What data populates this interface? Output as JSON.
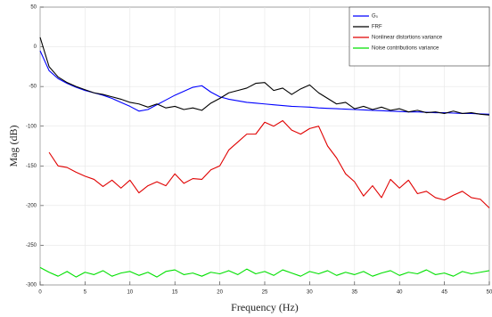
{
  "chart_data": {
    "type": "line",
    "xlabel": "Frequency (Hz)",
    "ylabel": "Mag (dB)",
    "x": [
      0,
      1,
      2,
      3,
      4,
      5,
      6,
      7,
      8,
      9,
      10,
      11,
      12,
      13,
      14,
      15,
      16,
      17,
      18,
      19,
      20,
      21,
      22,
      23,
      24,
      25,
      26,
      27,
      28,
      29,
      30,
      31,
      32,
      33,
      34,
      35,
      36,
      37,
      38,
      39,
      40,
      41,
      42,
      43,
      44,
      45,
      46,
      47,
      48,
      49,
      50
    ],
    "series": [
      {
        "name": "G₀",
        "color": "#0000ff",
        "values": [
          -5,
          -30,
          -40,
          -46,
          -51,
          -55,
          -58,
          -61,
          -65,
          -70,
          -75,
          -81,
          -79,
          -73,
          -67,
          -61,
          -56,
          -51,
          -49,
          -57,
          -63,
          -66,
          -68,
          -70,
          -71,
          -72,
          -73,
          -74,
          -75,
          -75.5,
          -76,
          -77,
          -77.5,
          -78,
          -78.5,
          -79,
          -79.5,
          -80,
          -80.5,
          -81,
          -81.5,
          -82,
          -82,
          -82.5,
          -83,
          -83,
          -83.5,
          -84,
          -84,
          -84.5,
          -85
        ]
      },
      {
        "name": "FRF",
        "color": "#000000",
        "values": [
          12,
          -25,
          -38,
          -45,
          -50,
          -54,
          -58,
          -60,
          -63,
          -66,
          -70,
          -72,
          -76,
          -72,
          -77,
          -75,
          -79,
          -77,
          -80,
          -71,
          -65,
          -58,
          -55,
          -52,
          -46,
          -45,
          -55,
          -52,
          -60,
          -53,
          -48,
          -58,
          -65,
          -72,
          -70,
          -78,
          -75,
          -79,
          -76,
          -80,
          -78,
          -82,
          -80,
          -83,
          -82,
          -84,
          -81,
          -84,
          -83,
          -85,
          -86
        ]
      },
      {
        "name": "Nonlinear distortions variance",
        "color": "#e00000",
        "values": [
          null,
          -133,
          -150,
          -152,
          -158,
          -163,
          -167,
          -176,
          -168,
          -178,
          -168,
          -184,
          -175,
          -170,
          -175,
          -160,
          -172,
          -166,
          -167,
          -155,
          -150,
          -130,
          -120,
          -110,
          -110,
          -95,
          -100,
          -93,
          -105,
          -110,
          -103,
          -100,
          -125,
          -140,
          -160,
          -170,
          -188,
          -175,
          -190,
          -167,
          -178,
          -168,
          -185,
          -182,
          -190,
          -193,
          -187,
          -182,
          -190,
          -192,
          -203
        ]
      },
      {
        "name": "Noise contributions variance",
        "color": "#00e000",
        "values": [
          -278,
          -284,
          -289,
          -283,
          -290,
          -284,
          -287,
          -282,
          -289,
          -285,
          -283,
          -288,
          -284,
          -290,
          -283,
          -281,
          -287,
          -285,
          -289,
          -284,
          -286,
          -282,
          -287,
          -280,
          -286,
          -283,
          -288,
          -281,
          -285,
          -289,
          -283,
          -286,
          -282,
          -288,
          -284,
          -287,
          -283,
          -289,
          -285,
          -282,
          -288,
          -284,
          -286,
          -281,
          -287,
          -285,
          -289,
          -283,
          -286,
          -284,
          -282
        ]
      }
    ],
    "xlim": [
      0,
      50
    ],
    "ylim": [
      -300,
      50
    ],
    "xticks": [
      0,
      5,
      10,
      15,
      20,
      25,
      30,
      35,
      40,
      45,
      50
    ],
    "yticks": [
      -300,
      -250,
      -200,
      -150,
      -100,
      -50,
      0,
      50
    ],
    "grid": true,
    "legend": "upper right"
  }
}
